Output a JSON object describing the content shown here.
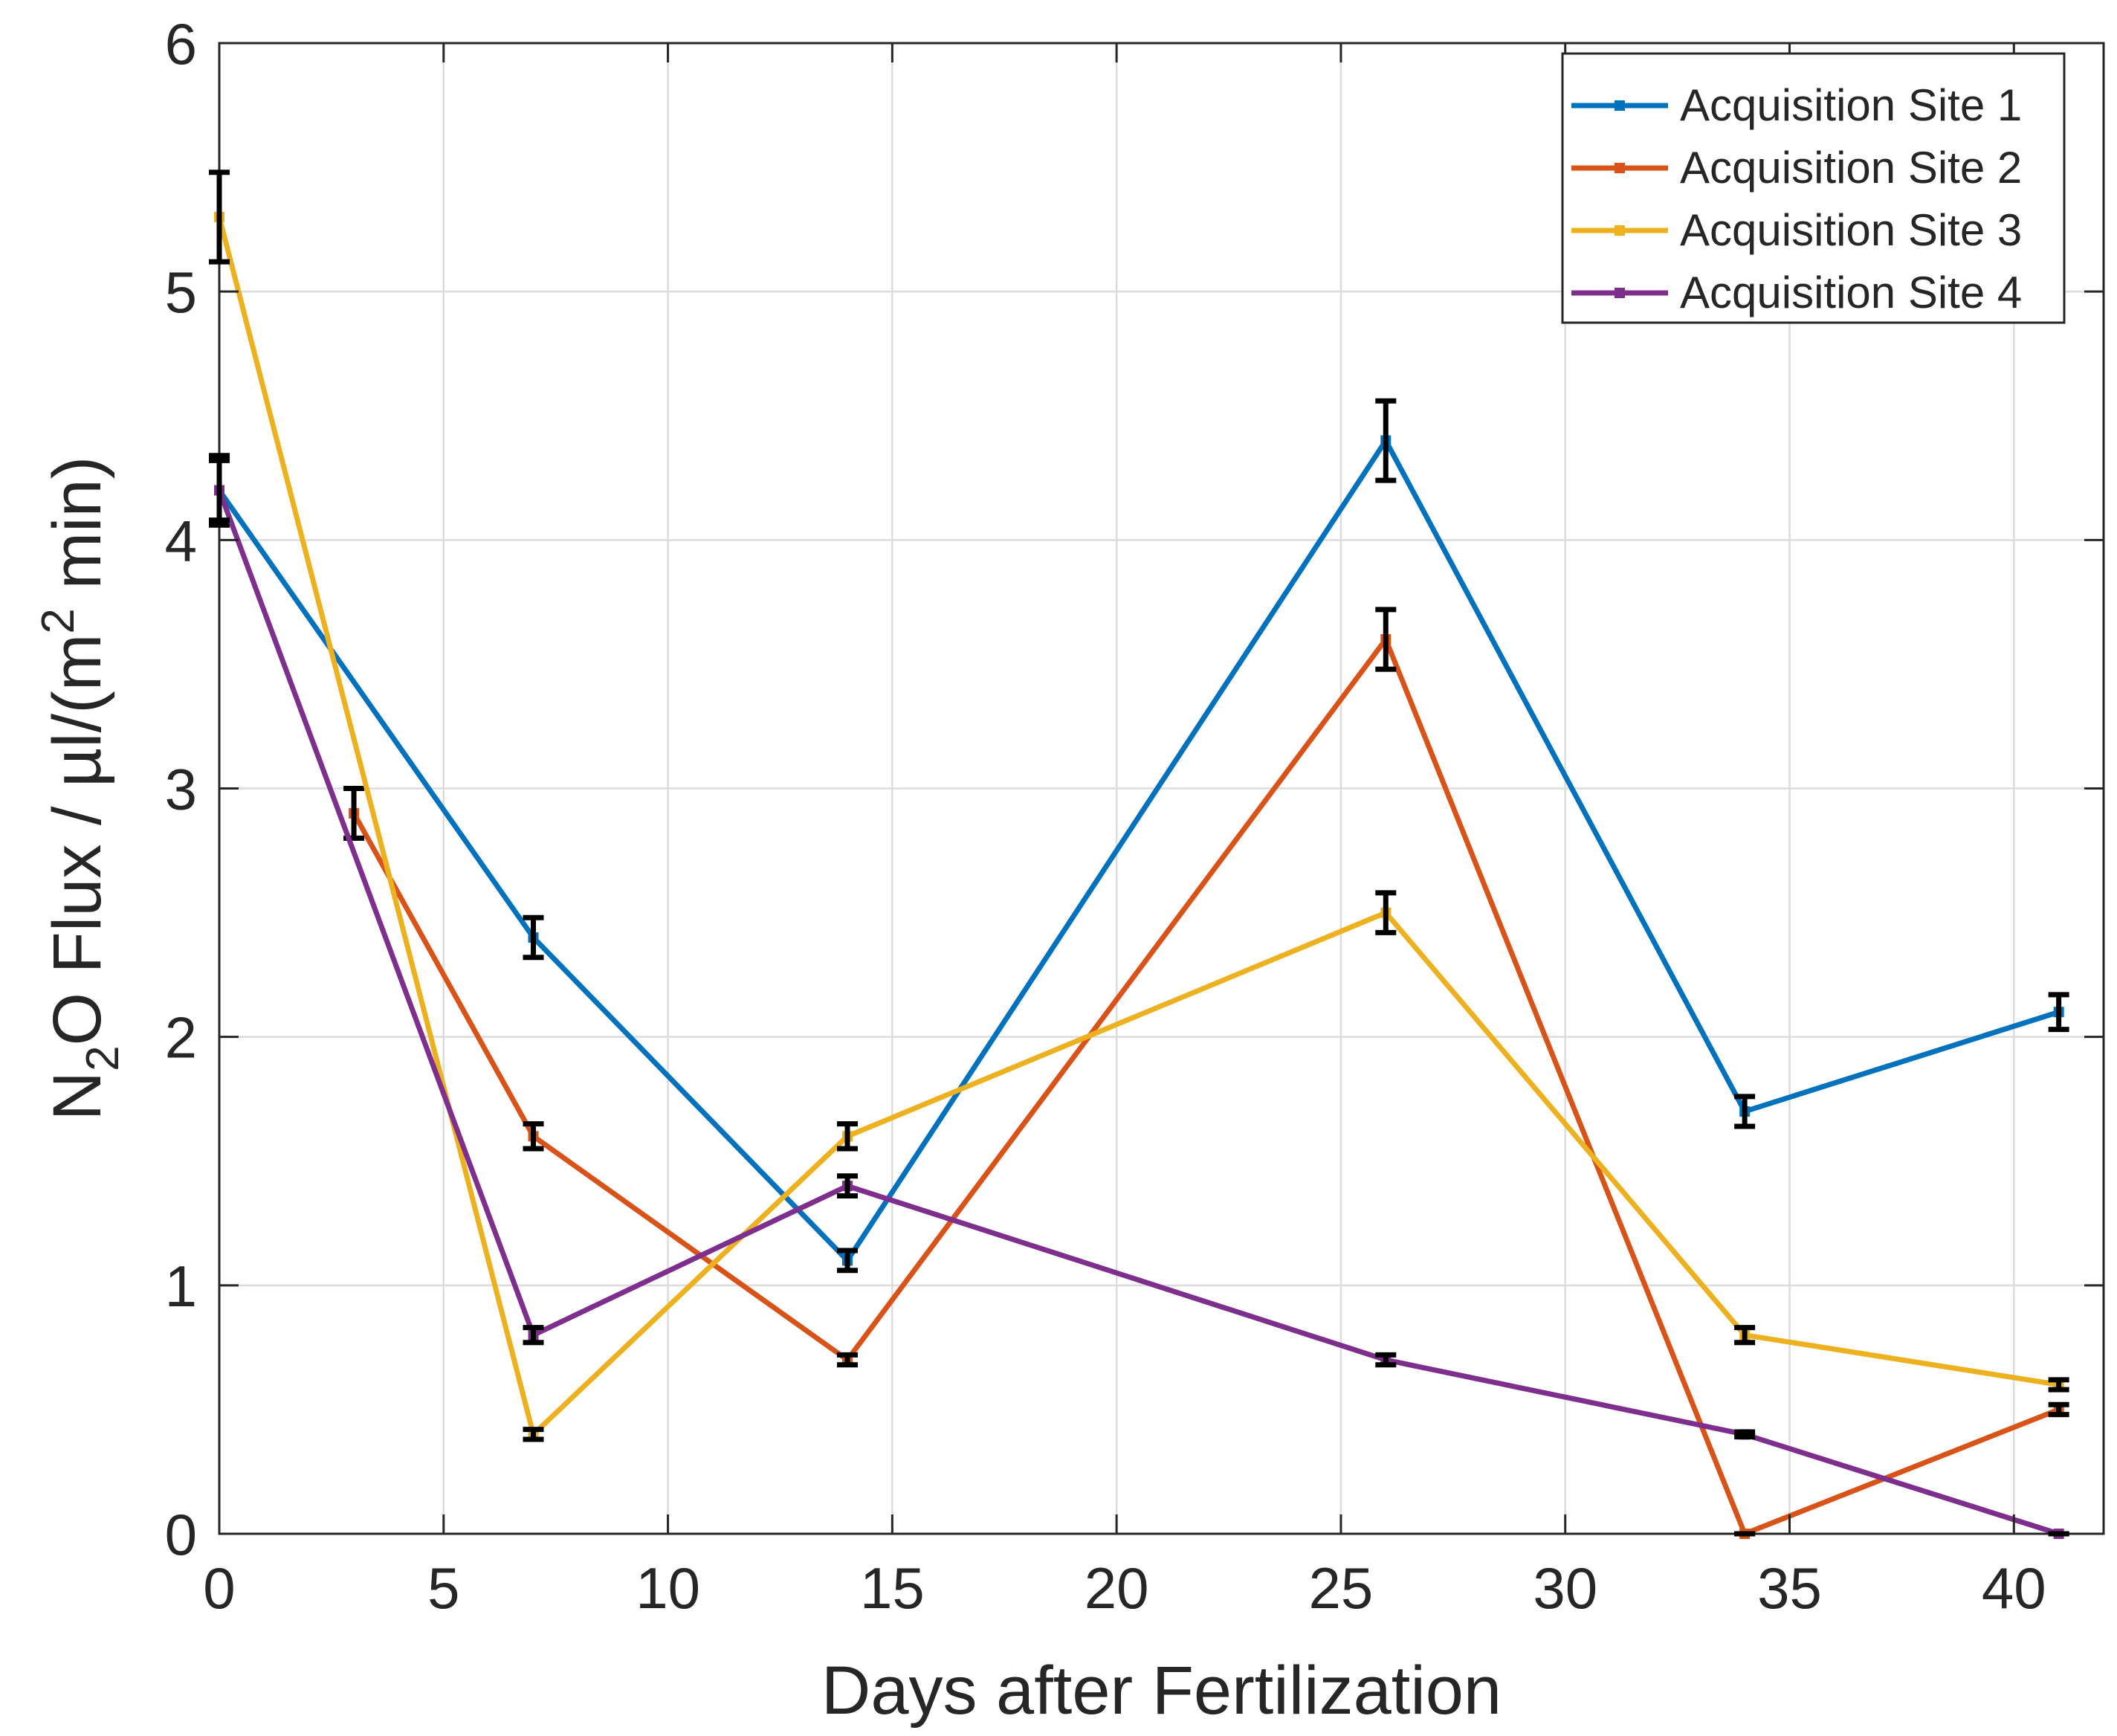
{
  "chart_data": {
    "type": "line",
    "title": "",
    "xlabel": "Days after Fertilization",
    "ylabel_parts": [
      "N",
      "2",
      "O Flux / µl/(m",
      "2",
      " min)"
    ],
    "xlim": [
      0,
      42
    ],
    "ylim": [
      0,
      6
    ],
    "xticks": [
      0,
      5,
      10,
      15,
      20,
      25,
      30,
      35,
      40
    ],
    "yticks": [
      0,
      1,
      2,
      3,
      4,
      5,
      6
    ],
    "grid": true,
    "legend_position": "top-right",
    "series": [
      {
        "name": "Acquisition Site 1",
        "color": "#0072BD",
        "x": [
          0,
          7,
          14,
          26,
          34,
          41
        ],
        "y": [
          4.2,
          2.4,
          1.1,
          4.4,
          1.7,
          2.1
        ],
        "err": [
          0.14,
          0.08,
          0.04,
          0.16,
          0.06,
          0.07
        ]
      },
      {
        "name": "Acquisition Site 2",
        "color": "#D95319",
        "x": [
          3,
          7,
          14,
          26,
          34,
          41
        ],
        "y": [
          2.9,
          1.6,
          0.7,
          3.6,
          0.0,
          0.5
        ],
        "err": [
          0.1,
          0.05,
          0.02,
          0.12,
          0.0,
          0.02
        ]
      },
      {
        "name": "Acquisition Site 3",
        "color": "#EDB120",
        "x": [
          0,
          7,
          14,
          26,
          34,
          41
        ],
        "y": [
          5.3,
          0.4,
          1.6,
          2.5,
          0.8,
          0.6
        ],
        "err": [
          0.18,
          0.02,
          0.05,
          0.08,
          0.03,
          0.02
        ]
      },
      {
        "name": "Acquisition Site 4",
        "color": "#7E2F8E",
        "x": [
          0,
          7,
          14,
          26,
          34,
          41
        ],
        "y": [
          4.2,
          0.8,
          1.4,
          0.7,
          0.4,
          0.0
        ],
        "err": [
          0.12,
          0.03,
          0.04,
          0.02,
          0.01,
          0.0
        ]
      }
    ]
  }
}
